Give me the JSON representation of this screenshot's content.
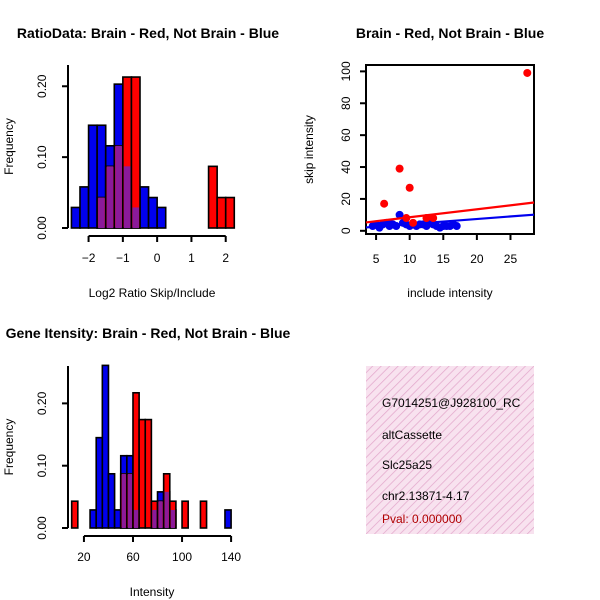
{
  "colors": {
    "red": "#ff0000",
    "blue": "#0000ee",
    "overlap": "#8b1a9a",
    "hatch": "#d070b0",
    "panel_bg": "#f8e2ef",
    "pval": "#b00000"
  },
  "info_panel": {
    "lines": [
      "G7014251@J928100_RC",
      "altCassette",
      "Slc25a25",
      "chr2.13871-4.17"
    ],
    "pval": "Pval: 0.000000"
  },
  "chart_data": [
    {
      "id": "ratio-hist",
      "type": "bar",
      "title": "RatioData: Brain - Red, Not Brain - Blue",
      "xlabel": "Log2 Ratio Skip/Include",
      "ylabel": "Frequency",
      "xlim": [
        -2.6,
        2.3
      ],
      "ylim": [
        0,
        0.23
      ],
      "xticks": [
        -2,
        -1,
        0,
        1,
        2
      ],
      "xtick_labels": [
        "−2",
        "−1",
        "0",
        "1",
        "2"
      ],
      "yticks": [
        0,
        0.1,
        0.2
      ],
      "ytick_labels": [
        "0.00",
        "0.10",
        "0.20"
      ],
      "series": [
        {
          "name": "Not Brain",
          "color": "blue",
          "bins": [
            [
              -2.5,
              -2.25,
              0.029
            ],
            [
              -2.25,
              -2.0,
              0.058
            ],
            [
              -2.0,
              -1.75,
              0.145
            ],
            [
              -1.75,
              -1.5,
              0.145
            ],
            [
              -1.5,
              -1.25,
              0.116
            ],
            [
              -1.25,
              -1.0,
              0.203
            ],
            [
              -1.0,
              -0.75,
              0.087
            ],
            [
              -0.75,
              -0.5,
              0.029
            ],
            [
              -0.5,
              -0.25,
              0.058
            ],
            [
              -0.25,
              0.0,
              0.043
            ],
            [
              0.0,
              0.25,
              0.029
            ]
          ]
        },
        {
          "name": "Brain",
          "color": "red",
          "bins": [
            [
              -1.75,
              -1.5,
              0.043
            ],
            [
              -1.5,
              -1.25,
              0.087
            ],
            [
              -1.25,
              -1.0,
              0.116
            ],
            [
              -1.0,
              -0.75,
              0.213
            ],
            [
              -0.75,
              -0.5,
              0.213
            ],
            [
              1.5,
              1.75,
              0.087
            ],
            [
              1.75,
              2.0,
              0.043
            ],
            [
              2.0,
              2.25,
              0.043
            ]
          ]
        }
      ]
    },
    {
      "id": "intensity-scatter",
      "type": "scatter",
      "title": "Brain - Red, Not Brain - Blue",
      "xlabel": "include intensity",
      "ylabel": "skip intensity",
      "xlim": [
        3.5,
        28.5
      ],
      "ylim": [
        -2,
        104
      ],
      "xticks": [
        5,
        10,
        15,
        20,
        25
      ],
      "xtick_labels": [
        "5",
        "10",
        "15",
        "20",
        "25"
      ],
      "yticks": [
        0,
        20,
        40,
        60,
        80,
        100
      ],
      "ytick_labels": [
        "0",
        "20",
        "40",
        "60",
        "80",
        "100"
      ],
      "series": [
        {
          "name": "Not Brain",
          "color": "blue",
          "points": [
            [
              4.5,
              3
            ],
            [
              5.0,
              4
            ],
            [
              5.5,
              3
            ],
            [
              6.0,
              4
            ],
            [
              6.5,
              5
            ],
            [
              7.0,
              3
            ],
            [
              7.5,
              4
            ],
            [
              8.0,
              3
            ],
            [
              8.5,
              10
            ],
            [
              9.0,
              5
            ],
            [
              9.5,
              4
            ],
            [
              10.0,
              3
            ],
            [
              10.5,
              4
            ],
            [
              11.0,
              3
            ],
            [
              11.5,
              4
            ],
            [
              12.0,
              4
            ],
            [
              12.5,
              3
            ],
            [
              13.0,
              5
            ],
            [
              13.5,
              4
            ],
            [
              14.0,
              3
            ],
            [
              14.5,
              2
            ],
            [
              15.0,
              3
            ],
            [
              15.5,
              3
            ],
            [
              16.0,
              3
            ],
            [
              16.5,
              4
            ],
            [
              17.0,
              3
            ],
            [
              5.5,
              2
            ],
            [
              7.0,
              5
            ]
          ],
          "fit": {
            "intercept": 1.0,
            "slope": 0.32
          }
        },
        {
          "name": "Brain",
          "color": "red",
          "points": [
            [
              6.2,
              17
            ],
            [
              8.5,
              39
            ],
            [
              10.0,
              27
            ],
            [
              9.5,
              8
            ],
            [
              12.5,
              8
            ],
            [
              13.5,
              8
            ],
            [
              10.5,
              5
            ],
            [
              27.5,
              99
            ]
          ],
          "fit": {
            "intercept": 3.5,
            "slope": 0.5
          }
        }
      ]
    },
    {
      "id": "intensity-hist",
      "type": "bar",
      "title": "Gene Itensity: Brain - Red, Not Brain - Blue",
      "xlabel": "Intensity",
      "ylabel": "Frequency",
      "xlim": [
        7,
        144
      ],
      "ylim": [
        0,
        0.26
      ],
      "xticks": [
        20,
        60,
        100,
        140
      ],
      "xtick_labels": [
        "20",
        "60",
        "100",
        "140"
      ],
      "yticks": [
        0,
        0.1,
        0.2
      ],
      "ytick_labels": [
        "0.00",
        "0.10",
        "0.20"
      ],
      "series": [
        {
          "name": "Not Brain",
          "color": "blue",
          "bins": [
            [
              25,
              30,
              0.029
            ],
            [
              30,
              35,
              0.145
            ],
            [
              35,
              40,
              0.261
            ],
            [
              40,
              45,
              0.087
            ],
            [
              45,
              50,
              0.029
            ],
            [
              50,
              55,
              0.116
            ],
            [
              55,
              60,
              0.116
            ],
            [
              60,
              65,
              0.029
            ],
            [
              75,
              80,
              0.029
            ],
            [
              80,
              85,
              0.058
            ],
            [
              85,
              90,
              0.058
            ],
            [
              90,
              95,
              0.029
            ],
            [
              135,
              140,
              0.029
            ]
          ]
        },
        {
          "name": "Brain",
          "color": "red",
          "bins": [
            [
              10,
              15,
              0.043
            ],
            [
              50,
              55,
              0.087
            ],
            [
              55,
              60,
              0.087
            ],
            [
              60,
              65,
              0.217
            ],
            [
              65,
              70,
              0.174
            ],
            [
              70,
              75,
              0.174
            ],
            [
              75,
              80,
              0.043
            ],
            [
              80,
              85,
              0.043
            ],
            [
              85,
              90,
              0.087
            ],
            [
              90,
              95,
              0.043
            ],
            [
              100,
              105,
              0.043
            ],
            [
              115,
              120,
              0.043
            ]
          ]
        }
      ]
    }
  ]
}
